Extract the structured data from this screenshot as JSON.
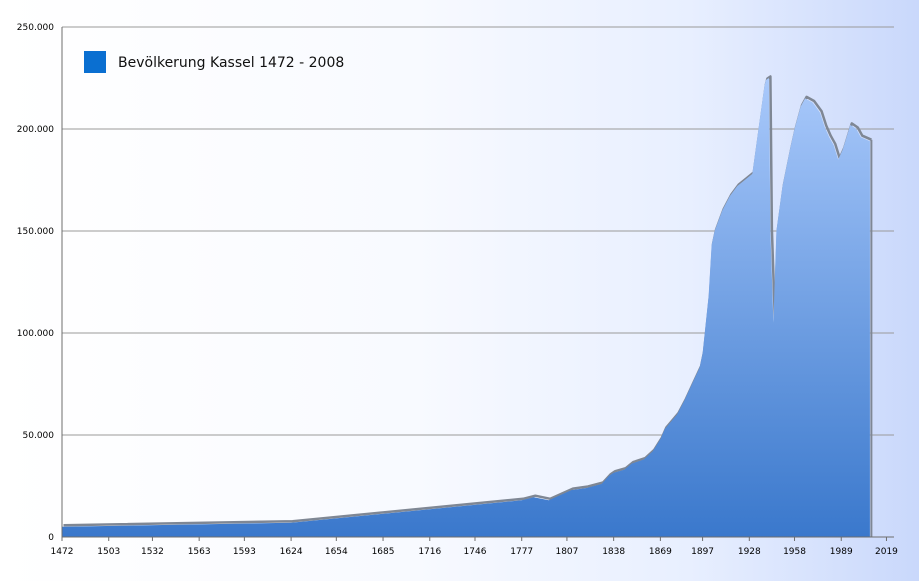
{
  "chart_data": {
    "type": "area",
    "title": "",
    "xlabel": "",
    "ylabel": "",
    "legend": {
      "position": "top-left",
      "label": "Bevölkerung Kassel 1472 - 2008"
    },
    "grid": true,
    "colors": {
      "fill_top": "#a9c9fb",
      "fill_bottom": "#3a78cc",
      "swatch": "#0a6fd1",
      "shadow": "#7f8794",
      "grid": "#9a9a9a",
      "axis": "#6d6d6d"
    },
    "xlim": [
      1472,
      2024
    ],
    "ylim": [
      0,
      250000
    ],
    "x_ticks": [
      "1472",
      "1503",
      "1532",
      "1563",
      "1593",
      "1624",
      "1654",
      "1685",
      "1716",
      "1746",
      "1777",
      "1807",
      "1838",
      "1869",
      "1897",
      "1928",
      "1958",
      "1989",
      "2019"
    ],
    "y_ticks": [
      "0",
      "50.000",
      "100.000",
      "150.000",
      "200.000",
      "250.000"
    ],
    "series": [
      {
        "name": "Bevölkerung Kassel 1472 - 2008",
        "x": [
          1472,
          1624,
          1777,
          1785,
          1795,
          1810,
          1820,
          1830,
          1835,
          1838,
          1845,
          1850,
          1858,
          1864,
          1869,
          1872,
          1880,
          1885,
          1890,
          1895,
          1897,
          1899,
          1901,
          1903,
          1905,
          1910,
          1915,
          1920,
          1925,
          1930,
          1935,
          1938,
          1939,
          1941,
          1942,
          1944,
          1945,
          1946,
          1950,
          1955,
          1958,
          1962,
          1965,
          1970,
          1975,
          1978,
          1981,
          1984,
          1987,
          1990,
          1995,
          1999,
          2002,
          2005,
          2008
        ],
        "y": [
          5000,
          7000,
          18000,
          19500,
          18000,
          23000,
          24000,
          26000,
          30000,
          31500,
          33000,
          36000,
          38000,
          42000,
          48000,
          53000,
          60000,
          67000,
          75000,
          83000,
          90000,
          104000,
          118000,
          143000,
          150000,
          160000,
          167000,
          172000,
          175000,
          178000,
          205000,
          221000,
          224000,
          225000,
          150000,
          105000,
          128000,
          150000,
          172000,
          190000,
          200000,
          211000,
          215000,
          213000,
          208000,
          201000,
          196000,
          192000,
          185000,
          190000,
          202000,
          200000,
          196000,
          195000,
          194000
        ]
      }
    ]
  }
}
